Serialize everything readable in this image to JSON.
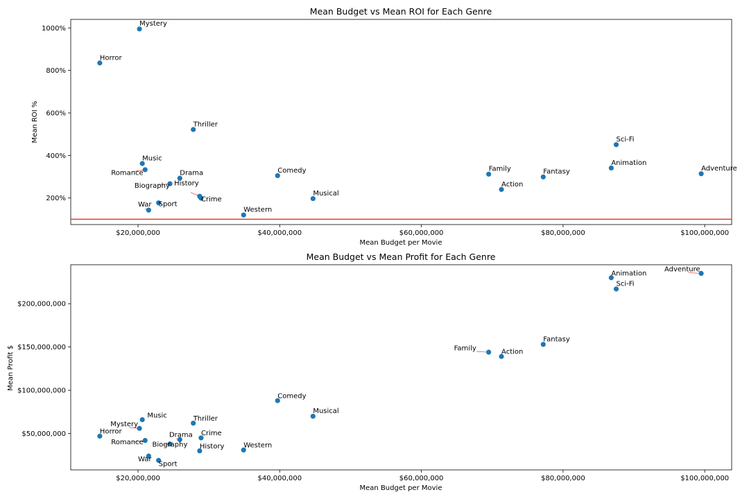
{
  "chart_data": [
    {
      "type": "scatter",
      "title": "Mean Budget vs Mean ROI for Each Genre",
      "xlabel": "Mean Budget per Movie",
      "ylabel": "Mean ROI %",
      "xlim": [
        10500000,
        103800000
      ],
      "ylim": [
        75,
        1040
      ],
      "xticks": [
        20000000,
        40000000,
        60000000,
        80000000,
        100000000
      ],
      "xtick_labels": [
        "$20,000,000",
        "$40,000,000",
        "$60,000,000",
        "$80,000,000",
        "$100,000,000"
      ],
      "yticks": [
        200,
        400,
        600,
        800,
        1000
      ],
      "ytick_labels": [
        "200%",
        "400%",
        "600%",
        "800%",
        "1000%"
      ],
      "reference_line": {
        "y": 100,
        "color": "#e8382c"
      },
      "grid": false,
      "marker_color": "#1f77b4",
      "points": [
        {
          "label": "Mystery",
          "x": 20200000,
          "y": 995,
          "label_x": 20200000,
          "label_y": 1010
        },
        {
          "label": "Horror",
          "x": 14600000,
          "y": 835,
          "label_x": 14600000,
          "label_y": 850
        },
        {
          "label": "Thriller",
          "x": 27800000,
          "y": 522,
          "label_x": 27800000,
          "label_y": 537
        },
        {
          "label": "Music",
          "x": 20600000,
          "y": 362,
          "label_x": 20600000,
          "label_y": 377
        },
        {
          "label": "Romance",
          "x": 21000000,
          "y": 333,
          "label_x": 16200000,
          "label_y": 308
        },
        {
          "label": "Drama",
          "x": 25900000,
          "y": 293,
          "label_x": 25900000,
          "label_y": 308
        },
        {
          "label": "Comedy",
          "x": 39700000,
          "y": 305,
          "label_x": 39700000,
          "label_y": 320
        },
        {
          "label": "Biography",
          "x": 24500000,
          "y": 267,
          "label_x": 19500000,
          "label_y": 247
        },
        {
          "label": "History",
          "x": 28700000,
          "y": 208,
          "label_x": 25100000,
          "label_y": 260
        },
        {
          "label": "Crime",
          "x": 28900000,
          "y": 199,
          "label_x": 28900000,
          "label_y": 185
        },
        {
          "label": "Musical",
          "x": 44700000,
          "y": 197,
          "label_x": 44700000,
          "label_y": 212
        },
        {
          "label": "Sport",
          "x": 22900000,
          "y": 177,
          "label_x": 22900000,
          "label_y": 162
        },
        {
          "label": "War",
          "x": 21500000,
          "y": 143,
          "label_x": 20000000,
          "label_y": 160
        },
        {
          "label": "Western",
          "x": 34900000,
          "y": 120,
          "label_x": 34900000,
          "label_y": 135
        },
        {
          "label": "Family",
          "x": 69500000,
          "y": 312,
          "label_x": 69500000,
          "label_y": 327
        },
        {
          "label": "Action",
          "x": 71300000,
          "y": 240,
          "label_x": 71300000,
          "label_y": 255
        },
        {
          "label": "Fantasy",
          "x": 77200000,
          "y": 299,
          "label_x": 77200000,
          "label_y": 314
        },
        {
          "label": "Sci-Fi",
          "x": 87500000,
          "y": 451,
          "label_x": 87500000,
          "label_y": 466
        },
        {
          "label": "Animation",
          "x": 86800000,
          "y": 341,
          "label_x": 86800000,
          "label_y": 356
        },
        {
          "label": "Adventure",
          "x": 99500000,
          "y": 314,
          "label_x": 99500000,
          "label_y": 329
        }
      ]
    },
    {
      "type": "scatter",
      "title": "Mean Budget vs Mean Profit for Each Genre",
      "xlabel": "Mean Budget per Movie",
      "ylabel": "Mean Profit $",
      "xlim": [
        10500000,
        103800000
      ],
      "ylim": [
        8000000,
        245000000
      ],
      "xticks": [
        20000000,
        40000000,
        60000000,
        80000000,
        100000000
      ],
      "xtick_labels": [
        "$20,000,000",
        "$40,000,000",
        "$60,000,000",
        "$80,000,000",
        "$100,000,000"
      ],
      "yticks": [
        50000000,
        100000000,
        150000000,
        200000000
      ],
      "ytick_labels": [
        "$50,000,000",
        "$100,000,000",
        "$150,000,000",
        "$200,000,000"
      ],
      "grid": false,
      "marker_color": "#1f77b4",
      "points": [
        {
          "label": "Adventure",
          "x": 99500000,
          "y": 235000000,
          "label_x": 94300000,
          "label_y": 237500000
        },
        {
          "label": "Animation",
          "x": 86800000,
          "y": 230000000,
          "label_x": 86800000,
          "label_y": 232500000
        },
        {
          "label": "Sci-Fi",
          "x": 87500000,
          "y": 217000000,
          "label_x": 87500000,
          "label_y": 220500000
        },
        {
          "label": "Fantasy",
          "x": 77200000,
          "y": 153000000,
          "label_x": 77200000,
          "label_y": 156500000
        },
        {
          "label": "Family",
          "x": 69500000,
          "y": 144000000,
          "label_x": 64600000,
          "label_y": 146000000
        },
        {
          "label": "Action",
          "x": 71300000,
          "y": 139000000,
          "label_x": 71300000,
          "label_y": 142000000
        },
        {
          "label": "Comedy",
          "x": 39700000,
          "y": 88000000,
          "label_x": 39700000,
          "label_y": 91000000
        },
        {
          "label": "Musical",
          "x": 44700000,
          "y": 70000000,
          "label_x": 44700000,
          "label_y": 73500000
        },
        {
          "label": "Music",
          "x": 20600000,
          "y": 66000000,
          "label_x": 21300000,
          "label_y": 68500000
        },
        {
          "label": "Thriller",
          "x": 27800000,
          "y": 62000000,
          "label_x": 27800000,
          "label_y": 65000000
        },
        {
          "label": "Mystery",
          "x": 20200000,
          "y": 56000000,
          "label_x": 16100000,
          "label_y": 58500000
        },
        {
          "label": "Horror",
          "x": 14600000,
          "y": 47000000,
          "label_x": 14600000,
          "label_y": 50000000
        },
        {
          "label": "Crime",
          "x": 28900000,
          "y": 45000000,
          "label_x": 28900000,
          "label_y": 48000000
        },
        {
          "label": "Drama",
          "x": 25900000,
          "y": 43000000,
          "label_x": 24400000,
          "label_y": 46000000
        },
        {
          "label": "Romance",
          "x": 21000000,
          "y": 42000000,
          "label_x": 16200000,
          "label_y": 37500000
        },
        {
          "label": "Biography",
          "x": 24500000,
          "y": 38000000,
          "label_x": 22000000,
          "label_y": 35000000
        },
        {
          "label": "History",
          "x": 28700000,
          "y": 30000000,
          "label_x": 28700000,
          "label_y": 33000000
        },
        {
          "label": "Western",
          "x": 34900000,
          "y": 31000000,
          "label_x": 34900000,
          "label_y": 34000000
        },
        {
          "label": "War",
          "x": 21500000,
          "y": 24000000,
          "label_x": 20000000,
          "label_y": 18000000
        },
        {
          "label": "Sport",
          "x": 22900000,
          "y": 19000000,
          "label_x": 22900000,
          "label_y": 12500000
        }
      ]
    }
  ]
}
